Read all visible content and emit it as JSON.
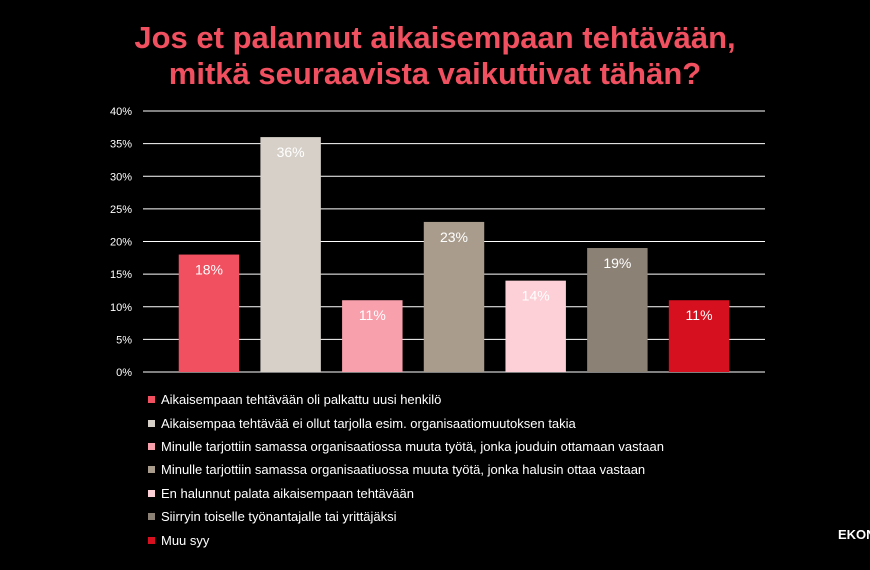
{
  "title_line1": "Jos et palannut aikaisempaan tehtävään,",
  "title_line2": "mitkä seuraavista vaikuttivat tähän?",
  "brand_text": "EKON",
  "chart_data": {
    "type": "bar",
    "title": "Jos et palannut aikaisempaan tehtävään, mitkä seuraavista vaikuttivat tähän?",
    "ylim": [
      0,
      40
    ],
    "yticks": [
      0,
      5,
      10,
      15,
      20,
      25,
      30,
      35,
      40
    ],
    "ytick_labels": [
      "0%",
      "5%",
      "10%",
      "15%",
      "20%",
      "25%",
      "30%",
      "35%",
      "40%"
    ],
    "grid": true,
    "legend_position": "bottom",
    "series": [
      {
        "name": "Aikaisempaan tehtävään oli palkattu uusi henkilö",
        "value": 18,
        "label": "18%",
        "color": "#f0505f"
      },
      {
        "name": "Aikaisempaa tehtävää ei ollut tarjolla esim. organisaatiomuutoksen takia",
        "value": 36,
        "label": "36%",
        "color": "#d6d0c8"
      },
      {
        "name": "Minulle tarjottiin samassa organisaatiossa muuta työtä, jonka jouduin ottamaan vastaan",
        "value": 11,
        "label": "11%",
        "color": "#f9a0ad"
      },
      {
        "name": "Minulle tarjottiin samassa organisaatiuossa muuta työtä, jonka halusin ottaa vastaan",
        "value": 23,
        "label": "23%",
        "color": "#a99c8c"
      },
      {
        "name": "En halunnut palata aikaisempaan tehtävään",
        "value": 14,
        "label": "14%",
        "color": "#fcd0d6"
      },
      {
        "name": "Siirryin toiselle työnantajalle tai yrittäjäksi",
        "value": 19,
        "label": "19%",
        "color": "#8c8175"
      },
      {
        "name": "Muu syy",
        "value": 11,
        "label": "11%",
        "color": "#d6101e"
      }
    ]
  }
}
